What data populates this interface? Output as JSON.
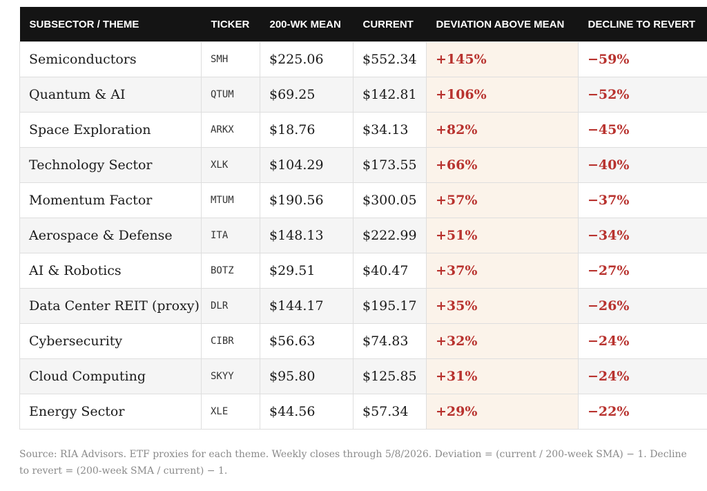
{
  "table": {
    "headers": {
      "name": "SUBSECTOR / THEME",
      "ticker": "TICKER",
      "mean": "200-WK MEAN",
      "current": "CURRENT",
      "deviation": "DEVIATION ABOVE MEAN",
      "decline": "DECLINE TO REVERT"
    },
    "rows": [
      {
        "name": "Semiconductors",
        "ticker": "SMH",
        "mean": "$225.06",
        "current": "$552.34",
        "deviation": "+145%",
        "decline": "−59%"
      },
      {
        "name": "Quantum & AI",
        "ticker": "QTUM",
        "mean": "$69.25",
        "current": "$142.81",
        "deviation": "+106%",
        "decline": "−52%"
      },
      {
        "name": "Space Exploration",
        "ticker": "ARKX",
        "mean": "$18.76",
        "current": "$34.13",
        "deviation": "+82%",
        "decline": "−45%"
      },
      {
        "name": "Technology Sector",
        "ticker": "XLK",
        "mean": "$104.29",
        "current": "$173.55",
        "deviation": "+66%",
        "decline": "−40%"
      },
      {
        "name": "Momentum Factor",
        "ticker": "MTUM",
        "mean": "$190.56",
        "current": "$300.05",
        "deviation": "+57%",
        "decline": "−37%"
      },
      {
        "name": "Aerospace & Defense",
        "ticker": "ITA",
        "mean": "$148.13",
        "current": "$222.99",
        "deviation": "+51%",
        "decline": "−34%"
      },
      {
        "name": "AI & Robotics",
        "ticker": "BOTZ",
        "mean": "$29.51",
        "current": "$40.47",
        "deviation": "+37%",
        "decline": "−27%"
      },
      {
        "name": "Data Center REIT (proxy)",
        "ticker": "DLR",
        "mean": "$144.17",
        "current": "$195.17",
        "deviation": "+35%",
        "decline": "−26%"
      },
      {
        "name": "Cybersecurity",
        "ticker": "CIBR",
        "mean": "$56.63",
        "current": "$74.83",
        "deviation": "+32%",
        "decline": "−24%"
      },
      {
        "name": "Cloud Computing",
        "ticker": "SKYY",
        "mean": "$95.80",
        "current": "$125.85",
        "deviation": "+31%",
        "decline": "−24%"
      },
      {
        "name": "Energy Sector",
        "ticker": "XLE",
        "mean": "$44.56",
        "current": "$57.34",
        "deviation": "+29%",
        "decline": "−22%"
      }
    ]
  },
  "source_note": "Source: RIA Advisors. ETF proxies for each theme. Weekly closes through 5/8/2026. Deviation = (current / 200-week SMA) − 1. Decline to revert = (200-week SMA / current) − 1.",
  "colors": {
    "header_bg": "#141414",
    "accent_red": "#b8322e",
    "deviation_bg": "#fbf3ea",
    "stripe": "#f5f5f5"
  }
}
